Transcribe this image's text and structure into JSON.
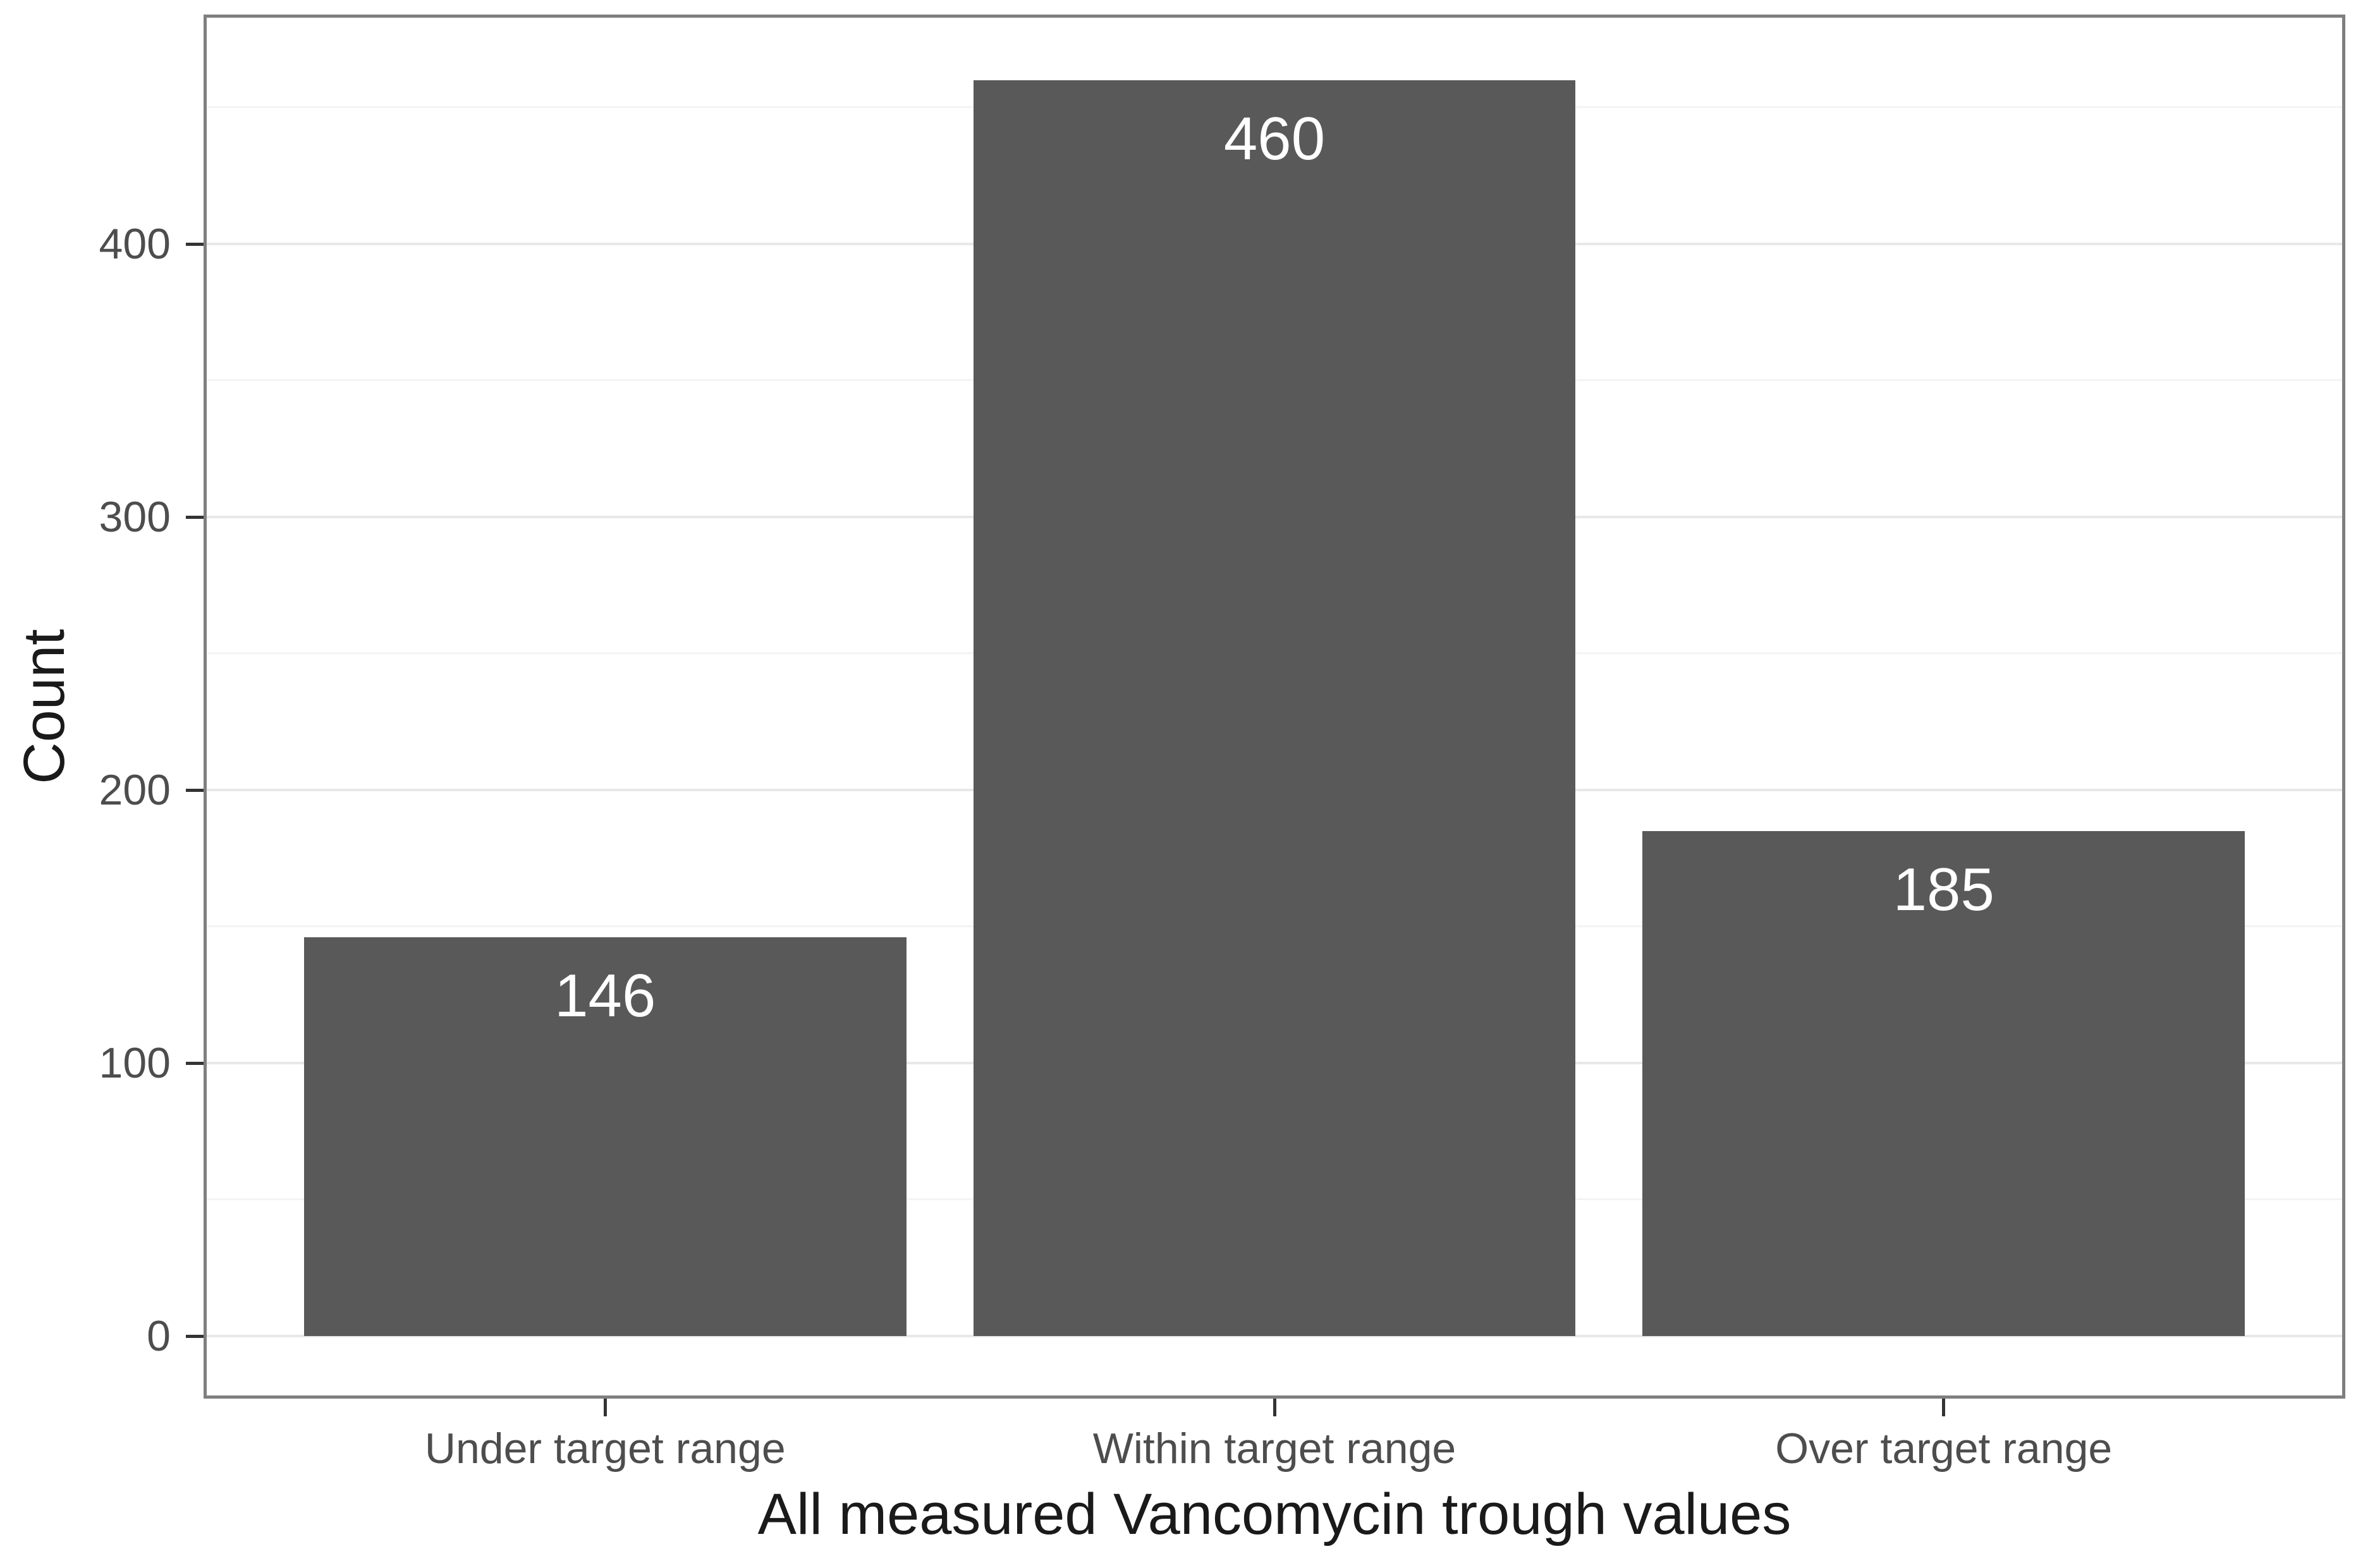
{
  "chart_data": {
    "type": "bar",
    "categories": [
      "Under target range",
      "Within target range",
      "Over target range"
    ],
    "values": [
      146,
      460,
      185
    ],
    "bar_labels": [
      "146",
      "460",
      "185"
    ],
    "title": "",
    "xlabel": "All measured Vancomycin trough values",
    "ylabel": "Count",
    "ylim": [
      -23,
      484
    ],
    "y_major_ticks": [
      0,
      100,
      200,
      300,
      400
    ],
    "y_minor_ticks": [
      50,
      150,
      250,
      350,
      450
    ],
    "grid": "major+minor horizontal",
    "legend_position": "none",
    "colors": {
      "bar_fill": "#595959",
      "bar_label_text": "#ffffff",
      "axis_text": "#4d4d4d",
      "axis_title_text": "#1a1a1a",
      "panel_border": "#7f7f7f",
      "grid_major": "#e8e8e8",
      "grid_minor": "#f4f4f4",
      "tick_mark": "#333333",
      "background": "#ffffff"
    }
  }
}
